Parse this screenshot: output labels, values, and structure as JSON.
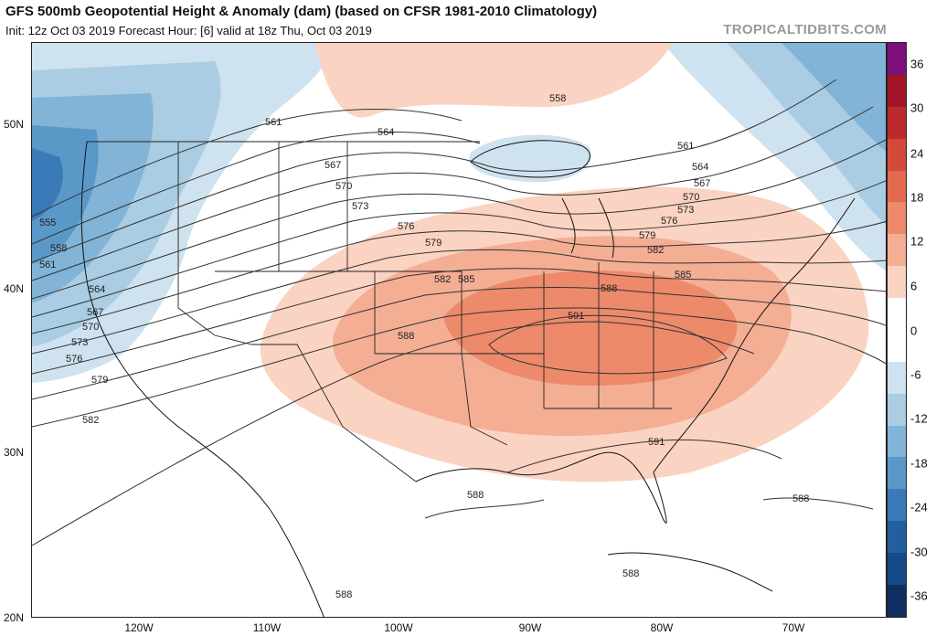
{
  "header": {
    "title": "GFS 500mb Geopotential Height & Anomaly (dam) (based on CFSR 1981-2010 Climatology)",
    "subtitle": "Init: 12z Oct 03 2019   Forecast Hour: [6]   valid at 18z Thu, Oct 03 2019",
    "credit": "TROPICALTIDBITS.COM"
  },
  "axes": {
    "lat_labels": [
      "50N",
      "40N",
      "30N",
      "20N"
    ],
    "lon_labels": [
      "120W",
      "110W",
      "100W",
      "90W",
      "80W",
      "70W"
    ]
  },
  "colorbar": {
    "labels": [
      "36",
      "30",
      "24",
      "18",
      "12",
      "6",
      "0",
      "-6",
      "-12",
      "-18",
      "-24",
      "-30",
      "-36"
    ],
    "colors": [
      "#7b0f7b",
      "#a01628",
      "#bd2a2e",
      "#d44a3a",
      "#e26a50",
      "#ec8a6b",
      "#f4ae94",
      "#fbd3c2",
      "#ffffff",
      "#ffffff",
      "#cfe2ef",
      "#aacde3",
      "#81b4d6",
      "#5a98c8",
      "#3a7ab8",
      "#225f9f",
      "#164987",
      "#0f2f63"
    ]
  },
  "contour_labels": [
    "555",
    "558",
    "561",
    "564",
    "567",
    "570",
    "573",
    "576",
    "579",
    "582",
    "561",
    "564",
    "567",
    "570",
    "573",
    "576",
    "579",
    "582",
    "585",
    "588",
    "558",
    "561",
    "564",
    "567",
    "570",
    "573",
    "576",
    "579",
    "582",
    "585",
    "588",
    "591",
    "591",
    "588",
    "588",
    "588",
    "588"
  ]
}
